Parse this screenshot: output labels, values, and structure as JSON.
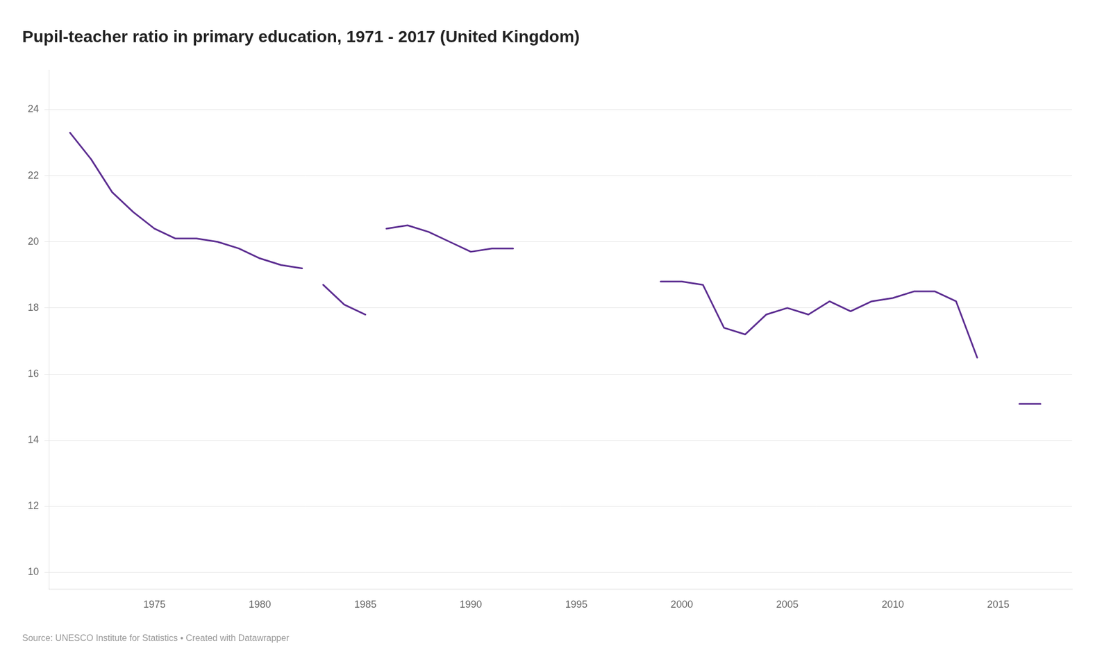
{
  "chart_data": {
    "type": "line",
    "title": "Pupil-teacher ratio in primary education, 1971 - 2017 (United Kingdom)",
    "source": "Source: UNESCO Institute for Statistics • Created with Datawrapper",
    "color": "#5c2d91",
    "grid": "y",
    "xlim": [
      1970.0,
      2018.5
    ],
    "xticks": [
      1975,
      1980,
      1985,
      1990,
      1995,
      2000,
      2005,
      2010,
      2015
    ],
    "ylim": [
      9.5,
      25.2
    ],
    "yticks": [
      10,
      12,
      14,
      16,
      18,
      20,
      22,
      24
    ],
    "series": [
      {
        "x": [
          1971,
          1972,
          1973,
          1974,
          1975,
          1976,
          1977,
          1978,
          1979,
          1980,
          1981,
          1982
        ],
        "values": [
          23.3,
          22.5,
          21.5,
          20.9,
          20.4,
          20.1,
          20.1,
          20.0,
          19.8,
          19.5,
          19.3,
          19.2
        ]
      },
      {
        "x": [
          1983,
          1984,
          1985
        ],
        "values": [
          18.7,
          18.1,
          17.8
        ]
      },
      {
        "x": [
          1986,
          1987,
          1988,
          1989,
          1990,
          1991,
          1992
        ],
        "values": [
          20.4,
          20.5,
          20.3,
          20.0,
          19.7,
          19.8,
          19.8
        ]
      },
      {
        "x": [
          1999,
          2000,
          2001,
          2002,
          2003,
          2004,
          2005,
          2006,
          2007,
          2008,
          2009,
          2010,
          2011,
          2012,
          2013,
          2014
        ],
        "values": [
          18.8,
          18.8,
          18.7,
          17.4,
          17.2,
          17.8,
          18.0,
          17.8,
          18.2,
          17.9,
          18.2,
          18.3,
          18.5,
          18.5,
          18.2,
          16.5
        ]
      },
      {
        "x": [
          2016,
          2017
        ],
        "values": [
          15.1,
          15.1
        ]
      }
    ]
  }
}
